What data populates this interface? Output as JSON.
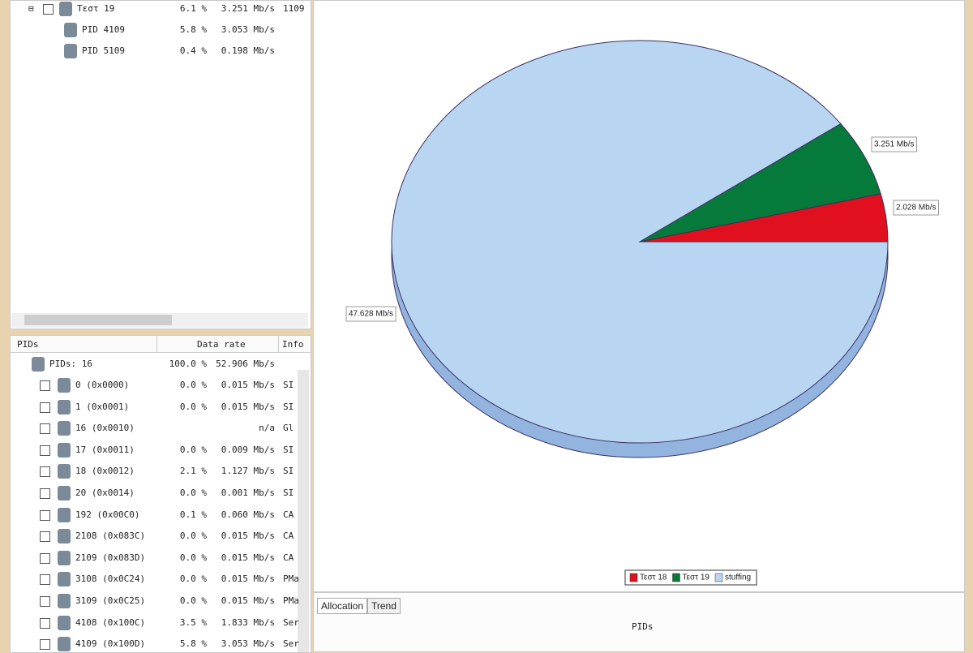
{
  "top_tree": {
    "rows": [
      {
        "label": "Τεστ 19",
        "percent": "6.1 %",
        "rate": "3.251 Mb/s",
        "info": "1109"
      },
      {
        "label": "PID 4109",
        "percent": "5.8 %",
        "rate": "3.053 Mb/s"
      },
      {
        "label": "PID 5109",
        "percent": "0.4 %",
        "rate": "0.198 Mb/s"
      }
    ]
  },
  "pids_table": {
    "headers": [
      "PIDs",
      "Data rate",
      "Info"
    ],
    "root": {
      "label": "PIDs: 16",
      "percent": "100.0 %",
      "rate": "52.906 Mb/s"
    },
    "rows": [
      {
        "label": "0 (0x0000)",
        "percent": "0.0 %",
        "rate": "0.015 Mb/s",
        "info": "SI"
      },
      {
        "label": "1 (0x0001)",
        "percent": "0.0 %",
        "rate": "0.015 Mb/s",
        "info": "SI"
      },
      {
        "label": "16 (0x0010)",
        "rate": "n/a",
        "info": "Gl"
      },
      {
        "label": "17 (0x0011)",
        "percent": "0.0 %",
        "rate": "0.009 Mb/s",
        "info": "SI"
      },
      {
        "label": "18 (0x0012)",
        "percent": "2.1 %",
        "rate": "1.127 Mb/s",
        "info": "SI"
      },
      {
        "label": "20 (0x0014)",
        "percent": "0.0 %",
        "rate": "0.001 Mb/s",
        "info": "SI"
      },
      {
        "label": "192 (0x00C0)",
        "percent": "0.1 %",
        "rate": "0.060 Mb/s",
        "info": "CA"
      },
      {
        "label": "2108 (0x083C)",
        "percent": "0.0 %",
        "rate": "0.015 Mb/s",
        "info": "CA"
      },
      {
        "label": "2109 (0x083D)",
        "percent": "0.0 %",
        "rate": "0.015 Mb/s",
        "info": "CA"
      },
      {
        "label": "3108 (0x0C24)",
        "percent": "0.0 %",
        "rate": "0.015 Mb/s",
        "info": "PMa"
      },
      {
        "label": "3109 (0x0C25)",
        "percent": "0.0 %",
        "rate": "0.015 Mb/s",
        "info": "PMa"
      },
      {
        "label": "4108 (0x100C)",
        "percent": "3.5 %",
        "rate": "1.833 Mb/s",
        "info": "Ser"
      },
      {
        "label": "4109 (0x100D)",
        "percent": "5.8 %",
        "rate": "3.053 Mb/s",
        "info": "Ser"
      }
    ]
  },
  "chart_data": {
    "type": "pie",
    "categories": [
      "Τεστ 18",
      "Τεστ 19",
      "stuffing"
    ],
    "values": [
      2.028,
      3.251,
      47.628
    ],
    "value_labels": [
      "2.028 Mb/s",
      "3.251 Mb/s",
      "47.628 Mb/s"
    ],
    "colors": [
      "#e0101e",
      "#067a3a",
      "#b8d6f2"
    ]
  },
  "tabs": [
    "Allocation",
    "Trend"
  ],
  "bottom_label": "PIDs"
}
